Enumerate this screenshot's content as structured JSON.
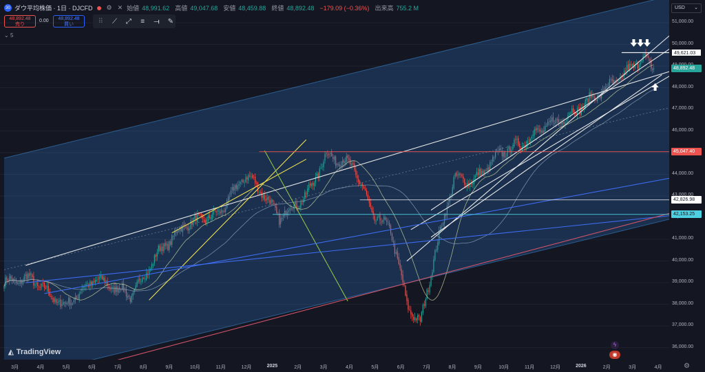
{
  "header": {
    "title": "ダウ平均株価 · 1日 · DJCFD",
    "open_label": "始値",
    "open": "48,991.62",
    "high_label": "高値",
    "high": "49,047.68",
    "low_label": "安値",
    "low": "48,459.88",
    "close_label": "終値",
    "close": "48,892.48",
    "change": "−179.09 (−0.36%)",
    "volume_label": "出来高",
    "volume": "755.2 M"
  },
  "trade": {
    "sell_price": "48,892.48",
    "sell_label": "売り",
    "spread": "0.00",
    "buy_price": "48,892.48",
    "buy_label": "買い"
  },
  "indicator_toggle": "5",
  "currency": "USD",
  "toolbar_icons": [
    "trend-line-icon",
    "ray-icon",
    "parallel-channel-icon",
    "horizontal-ray-icon",
    "brush-icon"
  ],
  "badges": {
    "tag_49621": "49,621.03",
    "last": "48,892.48",
    "red": "45,047.40",
    "tag_42826": "42,826.98",
    "cyan": "42,153.25"
  },
  "logo": "TradingView",
  "colors": {
    "up": "#26a69a",
    "down": "#ef5350",
    "bg": "#141722",
    "channel": "#1c3a5e",
    "yellow": "#f0e050",
    "blue": "#3d6cf0",
    "accent_cyan": "#4dd0e1",
    "green": "#8bc34a",
    "red_line": "#d1536a"
  },
  "chart_data": {
    "type": "candlestick",
    "title": "",
    "y_ticks": [
      36000,
      37000,
      38000,
      39000,
      40000,
      41000,
      42000,
      43000,
      44000,
      45000,
      46000,
      47000,
      48000,
      49000,
      50000,
      51000
    ],
    "y_tick_labels": [
      "36,000.00",
      "37,000.00",
      "38,000.00",
      "39,000.00",
      "40,000.00",
      "41,000.00",
      "42,000.00",
      "43,000.00",
      "44,000.00",
      "45,000.00",
      "46,000.00",
      "47,000.00",
      "48,000.00",
      "49,000.00",
      "50,000.00",
      "51,000.00"
    ],
    "ylim": [
      35450,
      52050
    ],
    "x_labels": [
      "3月",
      "4月",
      "5月",
      "6月",
      "7月",
      "8月",
      "9月",
      "10月",
      "11月",
      "12月",
      "2025",
      "2月",
      "3月",
      "4月",
      "5月",
      "6月",
      "7月",
      "8月",
      "9月",
      "10月",
      "11月",
      "12月",
      "2026",
      "2月",
      "3月",
      "4月"
    ],
    "bold_x_labels": [
      "2025",
      "2026"
    ],
    "waypoints_idx": [
      0,
      20,
      45,
      68,
      95,
      115,
      135,
      160,
      180,
      192,
      205,
      225,
      240,
      260,
      275,
      288,
      300,
      310,
      320,
      335,
      350,
      370,
      385,
      400,
      420,
      440,
      460,
      475,
      484
    ],
    "waypoints_close": [
      39000,
      39200,
      37900,
      39200,
      38400,
      40400,
      41700,
      42200,
      44000,
      43200,
      42000,
      43000,
      44900,
      44400,
      42100,
      41500,
      38000,
      37100,
      40100,
      43800,
      43700,
      45000,
      45400,
      46100,
      46700,
      47600,
      48500,
      49400,
      48892
    ],
    "last_close": 48892.48,
    "moving_averages": [
      {
        "period": 25
      },
      {
        "period": 75
      }
    ],
    "horizontal_levels": [
      {
        "value": 49621.03,
        "from_idx": 460
      },
      {
        "value": 45047.4,
        "from_idx": 190
      },
      {
        "value": 42826.98,
        "from_idx": 265
      },
      {
        "value": 42153.25,
        "from_idx": 200
      }
    ],
    "channel_center": {
      "from": [
        0,
        39600
      ],
      "to": [
        520,
        47450
      ]
    },
    "channel_upper": {
      "from": [
        0,
        44750
      ],
      "to": [
        520,
        52600
      ]
    },
    "channel_lower": {
      "from": [
        0,
        34450
      ],
      "to": [
        520,
        42300
      ]
    },
    "trend_lines": [
      {
        "kind": "white",
        "from": [
          16,
          39800
        ],
        "to": [
          520,
          49200
        ]
      },
      {
        "kind": "white",
        "from": [
          300,
          40000
        ],
        "to": [
          520,
          51700
        ]
      },
      {
        "kind": "white",
        "from": [
          318,
          42350
        ],
        "to": [
          515,
          50600
        ]
      },
      {
        "kind": "white",
        "from": [
          303,
          41450
        ],
        "to": [
          500,
          48700
        ]
      },
      {
        "kind": "white",
        "from": [
          318,
          41100
        ],
        "to": [
          490,
          48600
        ]
      },
      {
        "kind": "yellow",
        "from": [
          108,
          38200
        ],
        "to": [
          225,
          45600
        ]
      },
      {
        "kind": "yellow",
        "from": [
          125,
          41300
        ],
        "to": [
          225,
          44700
        ]
      },
      {
        "kind": "green",
        "from": [
          194,
          45100
        ],
        "to": [
          256,
          38150
        ]
      },
      {
        "kind": "blue",
        "from": [
          30,
          38500
        ],
        "to": [
          520,
          44100
        ]
      },
      {
        "kind": "blue",
        "from": [
          16,
          39000
        ],
        "to": [
          520,
          42250
        ]
      },
      {
        "kind": "red",
        "from": [
          55,
          34950
        ],
        "to": [
          520,
          42600
        ]
      }
    ],
    "arrows": [
      {
        "direction": "down",
        "idx": 469,
        "value": 50050
      },
      {
        "direction": "down",
        "idx": 474,
        "value": 50050
      },
      {
        "direction": "down",
        "idx": 479,
        "value": 50050
      },
      {
        "direction": "up",
        "idx": 485,
        "value": 48050
      }
    ]
  }
}
